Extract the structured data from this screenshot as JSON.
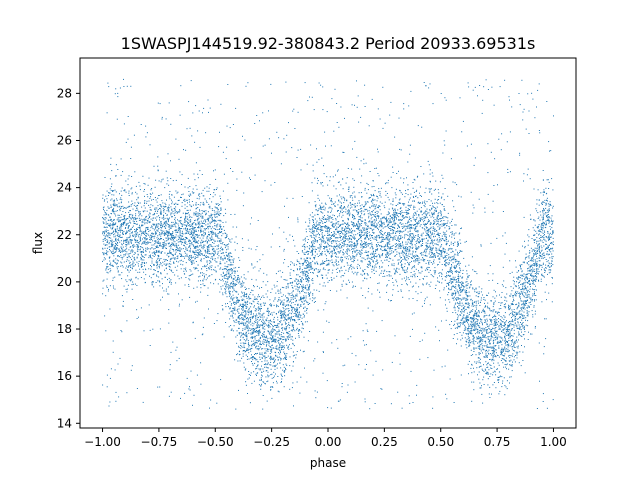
{
  "chart_data": {
    "type": "scatter",
    "title": "1SWASPJ144519.92-380843.2 Period 20933.69531s",
    "xlabel": "phase",
    "ylabel": "flux",
    "xlim": [
      -1.1,
      1.1
    ],
    "ylim": [
      13.8,
      29.5
    ],
    "xticks": [
      -1.0,
      -0.75,
      -0.5,
      -0.25,
      0.0,
      0.25,
      0.5,
      0.75,
      1.0
    ],
    "xtick_labels": [
      "−1.00",
      "−0.75",
      "−0.50",
      "−0.25",
      "0.00",
      "0.25",
      "0.50",
      "0.75",
      "1.00"
    ],
    "yticks": [
      14,
      16,
      18,
      20,
      22,
      24,
      26,
      28
    ],
    "ytick_labels": [
      "14",
      "16",
      "18",
      "20",
      "22",
      "24",
      "26",
      "28"
    ],
    "grid": false,
    "point_color": "#1f77b4",
    "phase_range": [
      -1.0,
      1.0
    ],
    "baseline_flux": 22.0,
    "baseline_scatter": 1.0,
    "eclipse_centers": [
      -0.27,
      0.73
    ],
    "eclipse_depth": 4.5,
    "eclipse_half_width": 0.22,
    "outlier_range": [
      14.6,
      28.6
    ]
  }
}
